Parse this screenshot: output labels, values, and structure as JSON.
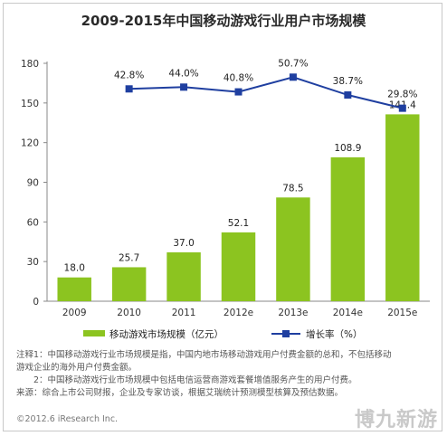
{
  "chart_data": {
    "type": "bar",
    "title": "2009-2015年中国移动游戏行业用户市场规模",
    "categories": [
      "2009",
      "2010",
      "2011",
      "2012e",
      "2013e",
      "2014e",
      "2015e"
    ],
    "series": [
      {
        "name": "移动游戏市场规模（亿元）",
        "type": "bar",
        "axis": "left",
        "values": [
          18.0,
          25.7,
          37.0,
          52.1,
          78.5,
          108.9,
          141.4
        ],
        "labels": [
          "18.0",
          "25.7",
          "37.0",
          "52.1",
          "78.5",
          "108.9",
          "141.4"
        ]
      },
      {
        "name": "增长率（%）",
        "type": "line",
        "axis": "right",
        "values": [
          null,
          42.8,
          44.0,
          40.8,
          50.7,
          38.7,
          29.8
        ],
        "labels": [
          "",
          "42.8%",
          "44.0%",
          "40.8%",
          "50.7%",
          "38.7%",
          "29.8%"
        ]
      }
    ],
    "yticks": [
      "0",
      "30",
      "60",
      "90",
      "120",
      "150",
      "180"
    ],
    "ylim": [
      0,
      180
    ],
    "line_display_range": [
      -100,
      60
    ],
    "grid": false,
    "legend_position": "bottom",
    "colors": {
      "bar": "#8cc420",
      "line": "#1f3fa0"
    }
  },
  "notes": [
    "注释1：中国移动游戏行业市场规模是指，中国内地市场移动游戏用户付费金额的总和，不包括移动",
    "游戏企业的海外用户付费金额。",
    "　　2：中国移动游戏行业市场规模中包括电信运营商游戏套餐增值服务产生的用户付费。",
    "来源：综合上市公司财报，企业及专家访谈，根据艾瑞统计预测模型核算及预估数据。"
  ],
  "copyright": "©2012.6 iResearch Inc.",
  "watermark": "博九新游"
}
